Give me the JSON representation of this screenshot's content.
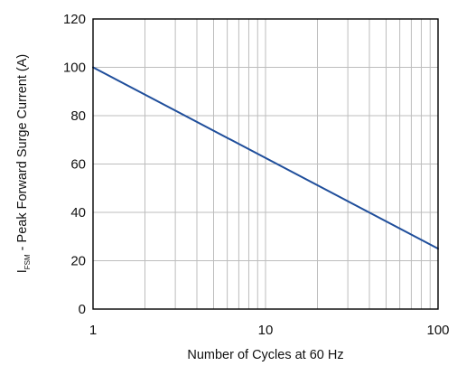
{
  "chart_data": {
    "type": "line",
    "xlabel": "Number of Cycles at 60 Hz",
    "ylabel": {
      "main": "I",
      "subscript": "FSM",
      "rest": " - Peak Forward Surge Current (A)"
    },
    "xscale": "log",
    "xlim": [
      1,
      100
    ],
    "ylim": [
      0,
      120
    ],
    "xticks": [
      "1",
      "10",
      "100"
    ],
    "yticks": [
      "0",
      "20",
      "40",
      "60",
      "80",
      "100",
      "120"
    ],
    "grid": true,
    "series": [
      {
        "color": "#1f4e9b",
        "x": [
          1,
          100
        ],
        "y": [
          100,
          25
        ]
      }
    ]
  },
  "colors": {
    "grid": "#bdbdbd",
    "axis": "#000000",
    "line": "#1f4e9b"
  }
}
